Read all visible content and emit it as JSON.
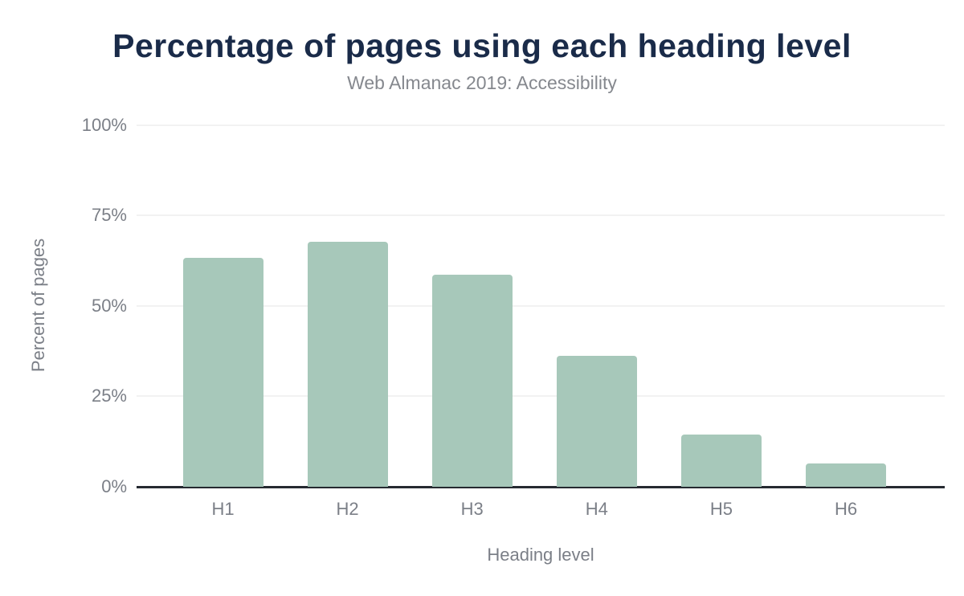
{
  "chart_data": {
    "type": "bar",
    "title": "Percentage of pages using each heading level",
    "subtitle": "Web Almanac 2019: Accessibility",
    "categories": [
      "H1",
      "H2",
      "H3",
      "H4",
      "H5",
      "H6"
    ],
    "values": [
      63.3,
      67.7,
      58.5,
      36.1,
      14.4,
      6.4
    ],
    "xlabel": "Heading level",
    "ylabel": "Percent of pages",
    "y_ticks": [
      "0%",
      "25%",
      "50%",
      "75%",
      "100%"
    ],
    "y_tick_values": [
      0,
      25,
      50,
      75,
      100
    ],
    "ylim": [
      0,
      100
    ],
    "grid": "horizontal",
    "legend": "none",
    "colors": {
      "bar": "#a7c8ba",
      "title": "#1a2b49",
      "subtitle": "#85888e",
      "tick_label": "#7b7f87",
      "axis_title": "#7b7f87",
      "gridline": "#f2f2f2",
      "axis_line": "#262a31",
      "background": "#ffffff"
    }
  }
}
